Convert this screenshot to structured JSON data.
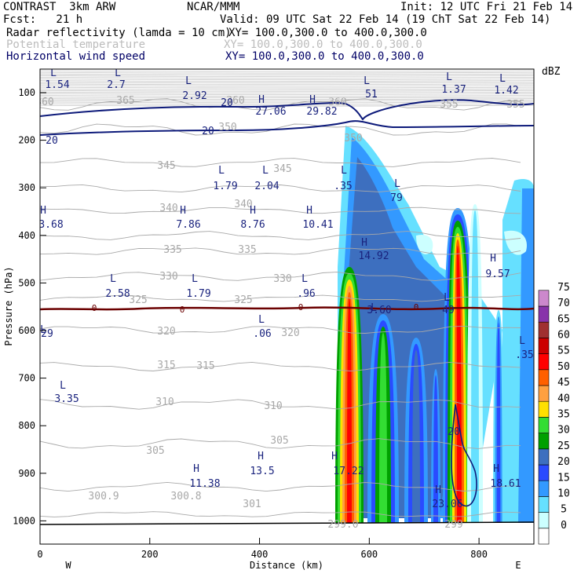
{
  "header": {
    "line1_left": "CONTRAST  3km ARW",
    "line1_center": "NCAR/MMM",
    "line1_right": "Init: 12 UTC Fri 21 Feb 14",
    "line2_left": "Fcst:   21 h",
    "line2_right": "Valid: 09 UTC Sat 22 Feb 14 (19 ChT Sat 22 Feb 14)",
    "fields": [
      {
        "name": "Radar reflectivity (lamda = 10 cm)",
        "xy": "XY= 100.0,300.0 to 400.0,300.0",
        "style": "blk"
      },
      {
        "name": "Potential temperature",
        "xy": "XY= 100.0,300.0 to 400.0,300.0",
        "style": "gry"
      },
      {
        "name": "Horizontal wind speed",
        "xy": "XY= 100.0,300.0 to 400.0,300.0",
        "style": "nvy"
      }
    ]
  },
  "chart_data": {
    "type": "heatmap",
    "xlabel": "Distance (km)",
    "ylabel": "Pressure (hPa)",
    "xlim": [
      0,
      900
    ],
    "x_ticks": [
      0,
      200,
      400,
      600,
      800
    ],
    "y_ticks": [
      100,
      200,
      300,
      400,
      500,
      600,
      700,
      800,
      900,
      1000
    ],
    "x_end_labels": {
      "left": "W",
      "right": "E"
    },
    "colorbar": {
      "unit": "dBZ",
      "levels": [
        0,
        5,
        10,
        15,
        20,
        25,
        30,
        35,
        40,
        45,
        50,
        55,
        60,
        65,
        70,
        75
      ],
      "colors": [
        "#ffffff",
        "#ccffff",
        "#66e0ff",
        "#3399ff",
        "#2a4bff",
        "#3d6fbf",
        "#00a000",
        "#33dd33",
        "#ffe000",
        "#ffa040",
        "#ff6000",
        "#ff0000",
        "#cc0000",
        "#a03030",
        "#8833aa",
        "#cc88cc"
      ]
    },
    "reflectivity_cores": [
      {
        "x": 565,
        "top": 310,
        "value": 50
      },
      {
        "x": 760,
        "top": 365,
        "value": 55
      },
      {
        "x": 620,
        "top": 400,
        "value": 30
      },
      {
        "x": 720,
        "top": 430,
        "value": 25
      }
    ],
    "theta_contour_labels": [
      "360",
      "365",
      "355",
      "350",
      "345",
      "340",
      "335",
      "330",
      "325",
      "320",
      "315",
      "310",
      "305",
      "300.9",
      "300.8",
      "301",
      "299.0",
      "299"
    ],
    "wind_contour_labels": [
      "20",
      "20",
      "20",
      "20",
      "0"
    ],
    "extrema_labels": [
      {
        "t": "L",
        "v": "1.54"
      },
      {
        "t": "L",
        "v": "2.7"
      },
      {
        "t": "L",
        "v": "2.92"
      },
      {
        "t": "H",
        "v": "27.06"
      },
      {
        "t": "H",
        "v": "29.82"
      },
      {
        "t": "L",
        "v": "51"
      },
      {
        "t": "L",
        "v": "1.37"
      },
      {
        "t": "L",
        "v": "1.42"
      },
      {
        "t": "L",
        "v": "1.79"
      },
      {
        "t": "L",
        "v": "2.04"
      },
      {
        "t": "L",
        "v": ".35"
      },
      {
        "t": "L",
        "v": "79"
      },
      {
        "t": "H",
        "v": "3.68"
      },
      {
        "t": "H",
        "v": "7.86"
      },
      {
        "t": "H",
        "v": "8.76"
      },
      {
        "t": "H",
        "v": "10.41"
      },
      {
        "t": "H",
        "v": "14.92"
      },
      {
        "t": "H",
        "v": "9.57"
      },
      {
        "t": "L",
        "v": "2.58"
      },
      {
        "t": "L",
        "v": "1.79"
      },
      {
        "t": "L",
        "v": ".96"
      },
      {
        "t": "L",
        "v": "3.60"
      },
      {
        "t": "L",
        "v": "49"
      },
      {
        "t": "L",
        "v": "29"
      },
      {
        "t": "L",
        "v": ".06"
      },
      {
        "t": "L",
        "v": ".35"
      },
      {
        "t": "L",
        "v": "3.35"
      },
      {
        "t": "H",
        "v": "11.38"
      },
      {
        "t": "H",
        "v": "13.5"
      },
      {
        "t": "H",
        "v": "17.22"
      },
      {
        "t": "H",
        "v": "23.06"
      },
      {
        "t": "H",
        "v": "18.61"
      }
    ]
  }
}
